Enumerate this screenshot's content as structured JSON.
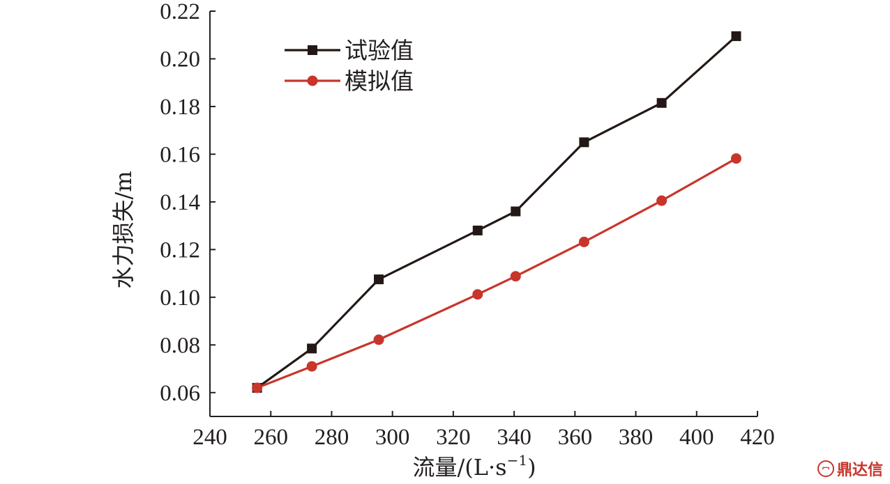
{
  "chart_data": {
    "type": "line",
    "title": "",
    "xlabel": "流量/(L·s",
    "xlabel_sup": "−1",
    "xlabel_close": ")",
    "ylabel": "水力损失/m",
    "xlim": [
      240,
      420
    ],
    "ylim": [
      0.05,
      0.22
    ],
    "x_ticks": [
      240,
      260,
      280,
      300,
      320,
      340,
      360,
      380,
      400,
      420
    ],
    "y_ticks": [
      0.06,
      0.08,
      0.1,
      0.12,
      0.14,
      0.16,
      0.18,
      0.2,
      0.22
    ],
    "y_tick_labels": [
      "0.06",
      "0.08",
      "0.10",
      "0.12",
      "0.14",
      "0.16",
      "0.18",
      "0.20",
      "0.22"
    ],
    "legend_position": "top-left",
    "series": [
      {
        "name": "试验值",
        "color": "#231815",
        "marker": "square",
        "x": [
          255.5,
          273.5,
          295.5,
          328,
          340.5,
          363,
          388.5,
          413
        ],
        "y": [
          0.062,
          0.0785,
          0.1075,
          0.128,
          0.136,
          0.165,
          0.1815,
          0.2095
        ]
      },
      {
        "name": "模拟值",
        "color": "#c8352b",
        "marker": "circle",
        "x": [
          255.5,
          273.5,
          295.5,
          328,
          340.5,
          363,
          388.5,
          413
        ],
        "y": [
          0.062,
          0.071,
          0.0822,
          0.1012,
          0.1088,
          0.1232,
          0.1405,
          0.1582
        ]
      }
    ]
  },
  "watermark": {
    "text": "鼎达信",
    "logo_icon": "cnki-logo-icon"
  }
}
